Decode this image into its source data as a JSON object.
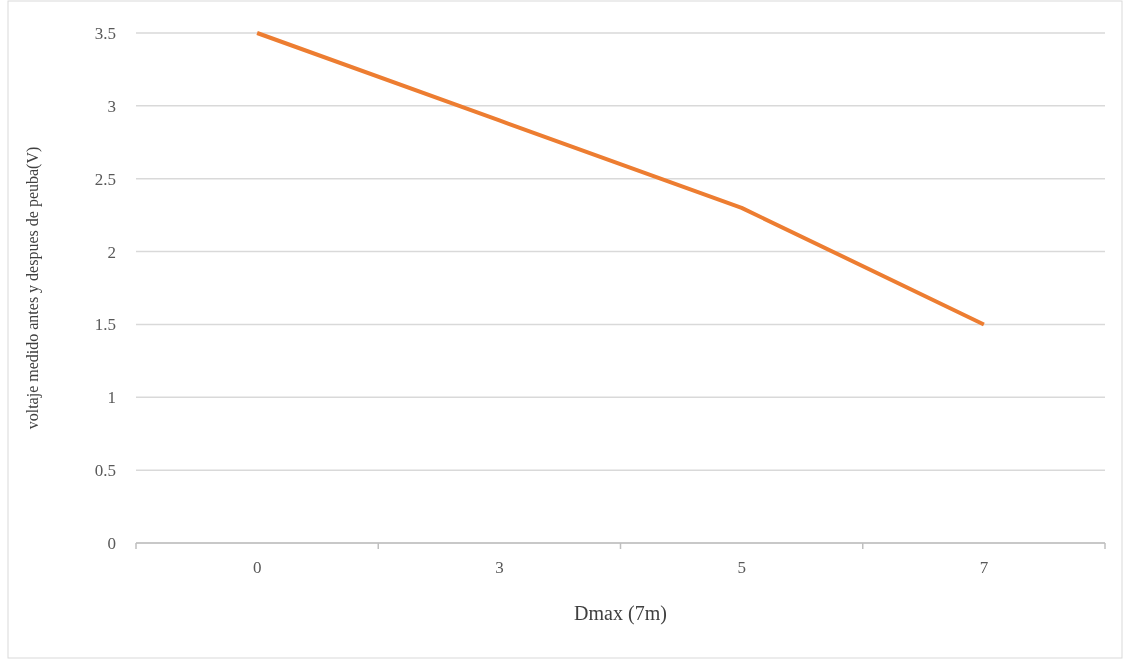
{
  "chart_data": {
    "type": "line",
    "xlabel": "Dmax (7m)",
    "ylabel": "voltaje medido antes y despues de peuba(V)",
    "categories": [
      "0",
      "3",
      "5",
      "7"
    ],
    "series": [
      {
        "color": "#ed7d31",
        "values": [
          3.5,
          2.9,
          2.3,
          1.5
        ]
      }
    ],
    "ylim": [
      0,
      3.5
    ],
    "yticks": [
      0,
      0.5,
      1,
      1.5,
      2,
      2.5,
      3,
      3.5
    ],
    "grid": "y",
    "marker": "none",
    "line_style": "solid"
  }
}
